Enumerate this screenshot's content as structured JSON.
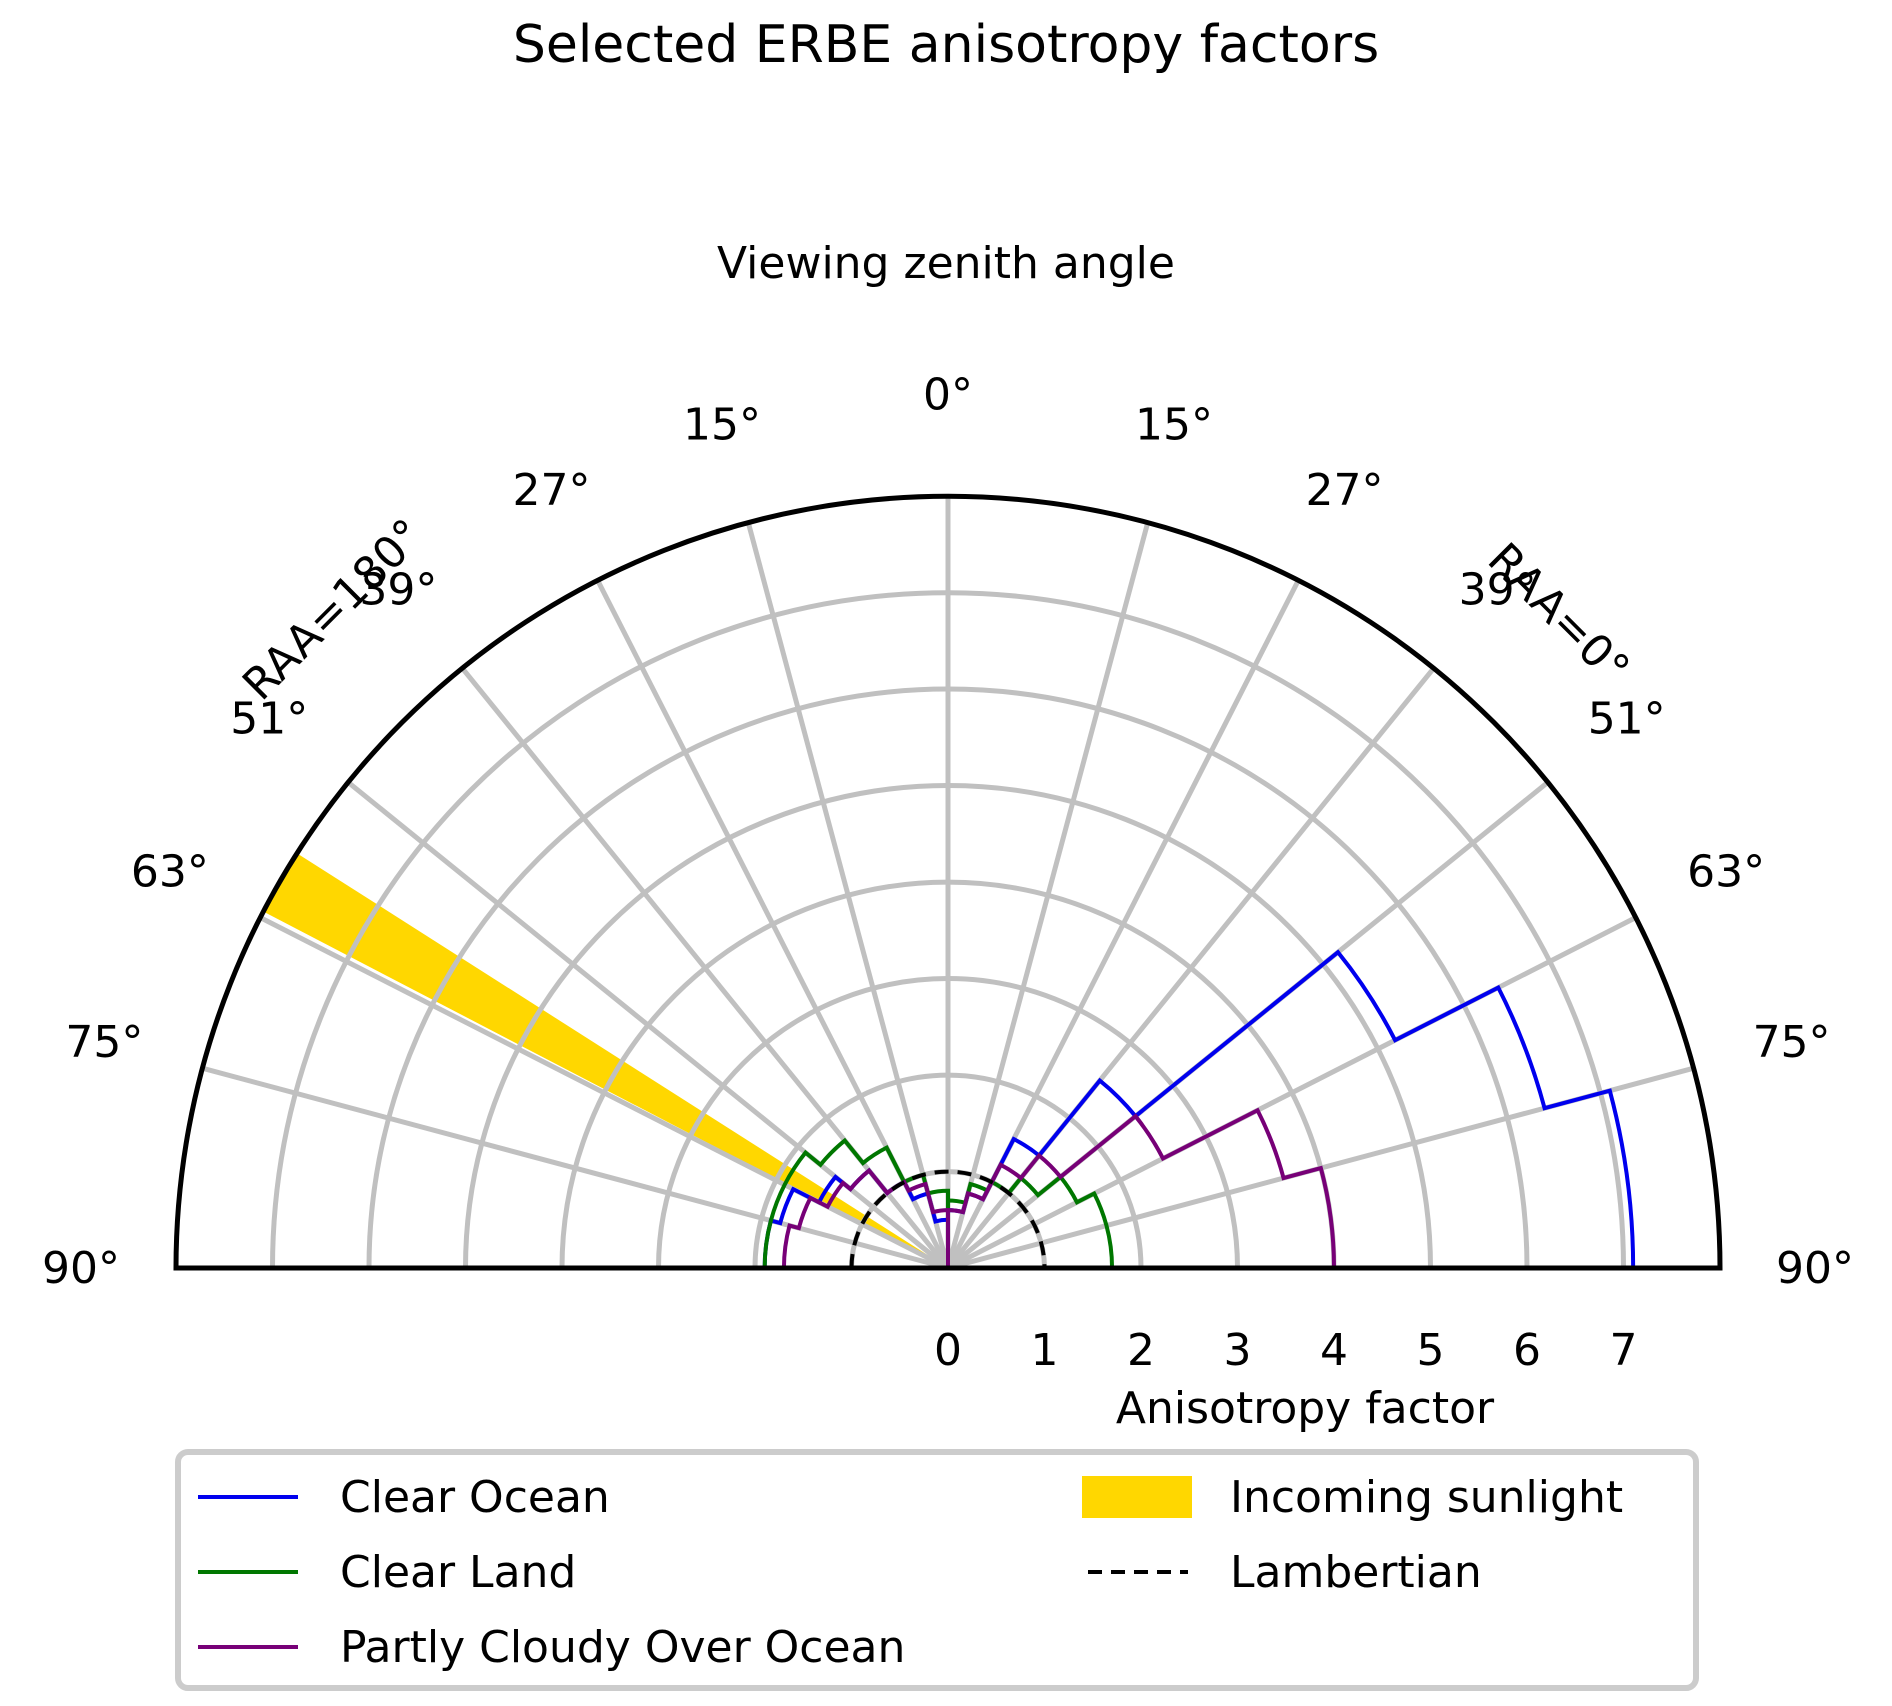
{
  "chart_data": {
    "type": "polar",
    "title": "Selected ERBE anisotropy factors",
    "angle_axis_label": "Viewing zenith angle",
    "radial_axis_label": "Anisotropy factor",
    "radial_ticks": [
      "0",
      "1",
      "2",
      "3",
      "4",
      "5",
      "6",
      "7"
    ],
    "radial_range": [
      0,
      8
    ],
    "zenith_ticks": [
      0,
      15,
      27,
      39,
      51,
      63,
      75,
      90
    ],
    "zenith_tick_labels": [
      "0°",
      "15°",
      "27°",
      "39°",
      "51°",
      "63°",
      "75°",
      "90°"
    ],
    "side_labels": {
      "left": "RAA=180°",
      "right": "RAA=0°"
    },
    "grid": true,
    "series": [
      {
        "name": "Clear Ocean",
        "color": "#0000ee",
        "style": "step",
        "zenith_edges": [
          0,
          15,
          27,
          39,
          51,
          63,
          75,
          90
        ],
        "raa0": [
          0.6,
          0.8,
          1.5,
          2.5,
          5.2,
          6.4,
          7.1
        ],
        "raa180": [
          0.5,
          0.8,
          1.0,
          1.3,
          1.5,
          1.8,
          1.9
        ]
      },
      {
        "name": "Clear Land",
        "color": "#007700",
        "style": "step",
        "zenith_edges": [
          0,
          15,
          27,
          39,
          51,
          63,
          75,
          90
        ],
        "raa0": [
          0.7,
          0.9,
          1.0,
          1.2,
          1.5,
          1.7,
          1.7
        ],
        "raa180": [
          0.8,
          1.0,
          1.4,
          1.7,
          1.9,
          1.9,
          1.9
        ]
      },
      {
        "name": "Partly Cloudy Over Ocean",
        "color": "#770077",
        "style": "step",
        "zenith_edges": [
          0,
          15,
          27,
          39,
          51,
          63,
          75,
          90
        ],
        "raa0": [
          0.6,
          0.8,
          1.2,
          1.5,
          2.5,
          3.6,
          4.0
        ],
        "raa180": [
          0.6,
          0.9,
          1.0,
          1.3,
          1.4,
          1.6,
          1.7
        ]
      }
    ],
    "lambertian": {
      "name": "Lambertian",
      "value": 1,
      "color": "#000000"
    },
    "sunlight": {
      "name": "Incoming sunlight",
      "color": "#ffd700",
      "zenith_range": [
        57.5,
        62.5
      ]
    },
    "legend": {
      "placement": "bottom",
      "entries": [
        "Clear Ocean",
        "Clear Land",
        "Partly Cloudy Over Ocean",
        "Incoming sunlight",
        "Lambertian"
      ]
    }
  }
}
